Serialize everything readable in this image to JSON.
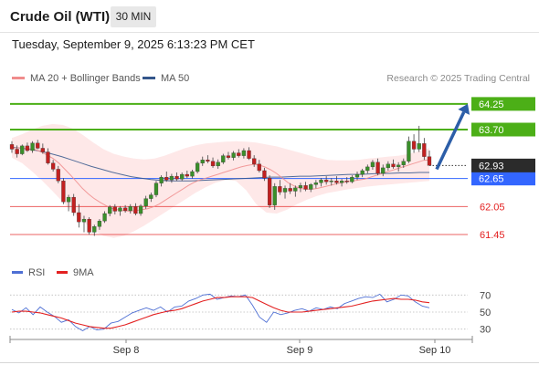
{
  "header": {
    "title": "Crude Oil (WTI)",
    "timeframe": "30 MIN",
    "datetime": "Tuesday, September 9, 2025 6:13:23 PM CET"
  },
  "legend": {
    "ma20": {
      "label": "MA 20 + Bollinger Bands",
      "color": "#f08c8c"
    },
    "ma50": {
      "label": "MA 50",
      "color": "#34568b"
    },
    "credit": "Research © 2025 Trading Central"
  },
  "rsi_legend": {
    "rsi": {
      "label": "RSI",
      "color": "#4e6fd4"
    },
    "ma9": {
      "label": "9MA",
      "color": "#e32121"
    }
  },
  "chart_data": [
    {
      "type": "candlestick",
      "title": "Crude Oil (WTI)",
      "x_ticks": [
        "Sep 8",
        "Sep 9",
        "Sep 10"
      ],
      "ylim": [
        61.0,
        64.6
      ],
      "last_price": 62.93,
      "levels": [
        {
          "value": 64.25,
          "label": "64.25",
          "color": "#4caf17",
          "kind": "resistance"
        },
        {
          "value": 63.7,
          "label": "63.70",
          "color": "#4caf17",
          "kind": "resistance"
        },
        {
          "value": 62.65,
          "label": "62.65",
          "color": "#3366ff",
          "kind": "pivot"
        },
        {
          "value": 62.05,
          "label": "62.05",
          "color": "#e32121",
          "kind": "support"
        },
        {
          "value": 61.45,
          "label": "61.45",
          "color": "#e32121",
          "kind": "support"
        }
      ],
      "target_arrow": {
        "from": 62.85,
        "to": 64.25
      },
      "candles": [
        [
          63.38,
          63.45,
          63.2,
          63.28
        ],
        [
          63.28,
          63.36,
          63.1,
          63.18
        ],
        [
          63.18,
          63.38,
          63.15,
          63.35
        ],
        [
          63.35,
          63.42,
          63.22,
          63.25
        ],
        [
          63.25,
          63.45,
          63.2,
          63.41
        ],
        [
          63.41,
          63.48,
          63.28,
          63.3
        ],
        [
          63.3,
          63.4,
          63.18,
          63.22
        ],
        [
          63.22,
          63.3,
          62.95,
          62.98
        ],
        [
          62.98,
          63.05,
          62.8,
          62.85
        ],
        [
          62.85,
          62.92,
          62.55,
          62.6
        ],
        [
          62.6,
          62.66,
          62.1,
          62.15
        ],
        [
          62.15,
          62.3,
          61.95,
          62.25
        ],
        [
          62.25,
          62.32,
          61.85,
          61.92
        ],
        [
          61.92,
          62.1,
          61.6,
          61.72
        ],
        [
          61.72,
          61.85,
          61.5,
          61.78
        ],
        [
          61.78,
          61.82,
          61.45,
          61.5
        ],
        [
          61.5,
          61.66,
          61.42,
          61.62
        ],
        [
          61.62,
          61.78,
          61.55,
          61.74
        ],
        [
          61.74,
          61.95,
          61.7,
          61.9
        ],
        [
          61.9,
          62.08,
          61.84,
          62.04
        ],
        [
          62.04,
          62.1,
          61.88,
          61.95
        ],
        [
          61.95,
          62.06,
          61.85,
          62.02
        ],
        [
          62.02,
          62.08,
          61.92,
          61.96
        ],
        [
          61.96,
          62.1,
          61.9,
          62.05
        ],
        [
          62.05,
          62.12,
          61.86,
          61.9
        ],
        [
          61.9,
          62.1,
          61.85,
          62.06
        ],
        [
          62.06,
          62.28,
          62.0,
          62.22
        ],
        [
          62.22,
          62.35,
          62.15,
          62.3
        ],
        [
          62.3,
          62.6,
          62.25,
          62.55
        ],
        [
          62.55,
          62.72,
          62.48,
          62.68
        ],
        [
          62.68,
          62.8,
          62.58,
          62.62
        ],
        [
          62.62,
          62.75,
          62.56,
          62.7
        ],
        [
          62.7,
          62.78,
          62.6,
          62.64
        ],
        [
          62.64,
          62.78,
          62.6,
          62.74
        ],
        [
          62.74,
          62.82,
          62.66,
          62.7
        ],
        [
          62.7,
          62.84,
          62.65,
          62.8
        ],
        [
          62.8,
          63.02,
          62.76,
          62.98
        ],
        [
          62.98,
          63.12,
          62.92,
          63.05
        ],
        [
          63.05,
          63.15,
          62.98,
          63.02
        ],
        [
          63.02,
          63.1,
          62.88,
          62.92
        ],
        [
          62.92,
          63.06,
          62.86,
          63.0
        ],
        [
          63.0,
          63.18,
          62.96,
          63.14
        ],
        [
          63.14,
          63.22,
          63.06,
          63.1
        ],
        [
          63.1,
          63.24,
          63.04,
          63.2
        ],
        [
          63.2,
          63.28,
          63.1,
          63.14
        ],
        [
          63.14,
          63.3,
          63.08,
          63.25
        ],
        [
          63.25,
          63.32,
          63.05,
          63.08
        ],
        [
          63.08,
          63.15,
          62.9,
          62.96
        ],
        [
          62.96,
          63.05,
          62.78,
          62.82
        ],
        [
          62.82,
          62.88,
          62.6,
          62.66
        ],
        [
          62.66,
          62.72,
          62.02,
          62.08
        ],
        [
          62.08,
          62.55,
          61.98,
          62.48
        ],
        [
          62.48,
          62.62,
          62.3,
          62.36
        ],
        [
          62.36,
          62.5,
          62.22,
          62.44
        ],
        [
          62.44,
          62.55,
          62.32,
          62.38
        ],
        [
          62.38,
          62.5,
          62.26,
          62.45
        ],
        [
          62.45,
          62.56,
          62.36,
          62.5
        ],
        [
          62.5,
          62.58,
          62.38,
          62.42
        ],
        [
          62.42,
          62.55,
          62.36,
          62.52
        ],
        [
          62.52,
          62.62,
          62.44,
          62.56
        ],
        [
          62.56,
          62.66,
          62.48,
          62.62
        ],
        [
          62.62,
          62.7,
          62.52,
          62.58
        ],
        [
          62.58,
          62.66,
          62.5,
          62.6
        ],
        [
          62.6,
          62.7,
          62.52,
          62.56
        ],
        [
          62.56,
          62.64,
          62.48,
          62.6
        ],
        [
          62.6,
          62.68,
          62.54,
          62.58
        ],
        [
          62.58,
          62.72,
          62.55,
          62.68
        ],
        [
          62.68,
          62.8,
          62.62,
          62.74
        ],
        [
          62.74,
          62.86,
          62.68,
          62.82
        ],
        [
          62.82,
          62.95,
          62.76,
          62.9
        ],
        [
          62.9,
          63.05,
          62.84,
          63.0
        ],
        [
          63.0,
          63.08,
          62.72,
          62.76
        ],
        [
          62.76,
          62.95,
          62.7,
          62.88
        ],
        [
          62.88,
          63.02,
          62.82,
          62.96
        ],
        [
          62.96,
          63.06,
          62.86,
          62.9
        ],
        [
          62.9,
          63.0,
          62.8,
          62.94
        ],
        [
          62.94,
          63.08,
          62.88,
          63.02
        ],
        [
          63.02,
          63.55,
          62.98,
          63.45
        ],
        [
          63.45,
          63.6,
          63.2,
          63.28
        ],
        [
          63.28,
          63.78,
          63.22,
          63.4
        ],
        [
          63.4,
          63.52,
          63.05,
          63.12
        ],
        [
          63.12,
          63.25,
          62.95,
          62.93
        ]
      ],
      "ma20": [
        63.3,
        63.31,
        63.3,
        63.29,
        63.27,
        63.22,
        63.15,
        63.08,
        62.98,
        62.85,
        62.72,
        62.58,
        62.44,
        62.32,
        62.22,
        62.14,
        62.07,
        62.01,
        61.98,
        61.96,
        61.95,
        61.96,
        61.98,
        62.0,
        62.04,
        62.1,
        62.18,
        62.26,
        62.34,
        62.42,
        62.5,
        62.57,
        62.62,
        62.66,
        62.7,
        62.74,
        62.78,
        62.82,
        62.86,
        62.9,
        62.93,
        62.95,
        62.94,
        62.9,
        62.84,
        62.76,
        62.66,
        62.56,
        62.49,
        62.44,
        62.42,
        62.42,
        62.44,
        62.47,
        62.5,
        62.53,
        62.56,
        62.58,
        62.6,
        62.62,
        62.64,
        62.68,
        62.72,
        62.76,
        62.8,
        62.84,
        62.88,
        62.92,
        62.96,
        63.0,
        63.04,
        63.05
      ],
      "ma50": [
        63.32,
        63.3,
        63.27,
        63.23,
        63.18,
        63.12,
        63.05,
        62.98,
        62.91,
        62.85,
        62.79,
        62.74,
        62.69,
        62.66,
        62.63,
        62.61,
        62.6,
        62.6,
        62.6,
        62.61,
        62.62,
        62.63,
        62.64,
        62.65,
        62.66,
        62.67,
        62.68,
        62.68,
        62.69,
        62.7,
        62.7,
        62.71,
        62.72,
        62.73,
        62.74,
        62.74,
        62.75,
        62.76,
        62.76,
        62.77,
        62.77,
        62.78,
        62.78
      ],
      "bb_upper": [
        63.52,
        63.6,
        63.7,
        63.78,
        63.82,
        63.8,
        63.72,
        63.58,
        63.42,
        63.28,
        63.18,
        63.12,
        63.08,
        63.06,
        63.08,
        63.14,
        63.22,
        63.3,
        63.36,
        63.4,
        63.42,
        63.44,
        63.45,
        63.44,
        63.42,
        63.38,
        63.34,
        63.28,
        63.22,
        63.16,
        63.1,
        63.05,
        63.04,
        63.04,
        63.05,
        63.08,
        63.1,
        63.12,
        63.14,
        63.18,
        63.24,
        63.3
      ],
      "bb_lower": [
        63.1,
        62.98,
        62.8,
        62.6,
        62.38,
        62.15,
        61.92,
        61.72,
        61.55,
        61.42,
        61.38,
        61.42,
        61.52,
        61.64,
        61.78,
        61.92,
        62.06,
        62.2,
        62.34,
        62.46,
        62.56,
        62.62,
        62.6,
        62.4,
        62.1,
        61.92,
        61.9,
        61.98,
        62.1,
        62.2,
        62.28,
        62.34,
        62.38,
        62.42,
        62.45,
        62.48,
        62.5,
        62.52,
        62.54,
        62.56,
        62.58,
        62.6
      ]
    },
    {
      "type": "line",
      "title": "RSI",
      "ylim": [
        20,
        80
      ],
      "y_ticks": [
        "70",
        "50",
        "30"
      ],
      "series": [
        {
          "name": "RSI",
          "values": [
            53,
            49,
            55,
            47,
            56,
            50,
            45,
            38,
            41,
            33,
            28,
            33,
            29,
            30,
            37,
            39,
            44,
            49,
            52,
            55,
            52,
            56,
            50,
            56,
            57,
            63,
            66,
            70,
            71,
            65,
            67,
            69,
            68,
            70,
            58,
            44,
            38,
            50,
            47,
            49,
            52,
            54,
            51,
            55,
            53,
            56,
            54,
            60,
            63,
            66,
            68,
            67,
            71,
            62,
            65,
            70,
            69,
            62,
            57,
            55
          ]
        },
        {
          "name": "9MA",
          "values": [
            50,
            51,
            51,
            50,
            49,
            47,
            45,
            43,
            40,
            37,
            35,
            33,
            32,
            31,
            31,
            33,
            35,
            38,
            41,
            44,
            47,
            49,
            51,
            52,
            54,
            57,
            60,
            63,
            65,
            67,
            67,
            68,
            68,
            68,
            67,
            63,
            59,
            55,
            52,
            50,
            50,
            50,
            51,
            52,
            53,
            54,
            55,
            56,
            57,
            59,
            61,
            63,
            64,
            65,
            66,
            65,
            65,
            64,
            62,
            61
          ]
        }
      ]
    }
  ]
}
